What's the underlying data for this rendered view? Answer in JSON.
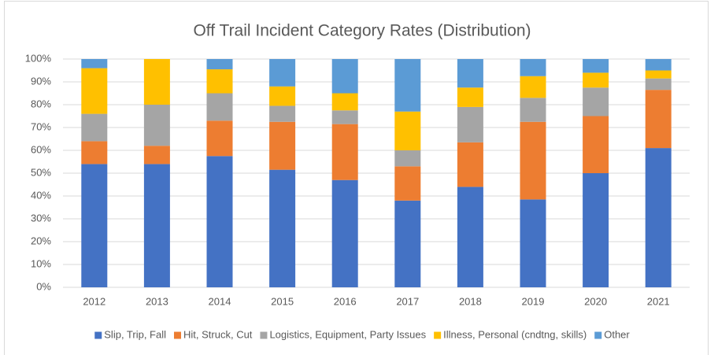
{
  "chart_data": {
    "type": "stacked_bar",
    "title": "Off Trail Incident Category Rates (Distribution)",
    "categories": [
      "2012",
      "2013",
      "2014",
      "2015",
      "2016",
      "2017",
      "2018",
      "2019",
      "2020",
      "2021"
    ],
    "series": [
      {
        "name": "Slip, Trip, Fall",
        "color": "#4472c4",
        "values": [
          54,
          54,
          57.5,
          51.5,
          47,
          38,
          44,
          38.5,
          50,
          61
        ]
      },
      {
        "name": "Hit, Struck, Cut",
        "color": "#ed7d31",
        "values": [
          10,
          8,
          15.5,
          21,
          24.5,
          15,
          19.5,
          34,
          25,
          25.5
        ]
      },
      {
        "name": "Logistics, Equipment, Party Issues",
        "color": "#a5a5a5",
        "values": [
          12,
          18,
          12,
          7,
          6,
          7,
          15.5,
          10.5,
          12.5,
          5
        ]
      },
      {
        "name": "Illness, Personal (cndtng, skills)",
        "color": "#ffc000",
        "values": [
          20,
          20,
          10.5,
          8.5,
          7.5,
          17,
          8.5,
          9.5,
          6.5,
          3.5
        ]
      },
      {
        "name": "Other",
        "color": "#5b9bd5",
        "values": [
          4,
          0,
          4.5,
          12,
          15,
          23,
          12.5,
          7.5,
          6,
          5
        ]
      }
    ],
    "ylim": [
      0,
      100
    ],
    "yticks": [
      {
        "value": 0,
        "label": "0%"
      },
      {
        "value": 10,
        "label": "10%"
      },
      {
        "value": 20,
        "label": "20%"
      },
      {
        "value": 30,
        "label": "30%"
      },
      {
        "value": 40,
        "label": "40%"
      },
      {
        "value": 50,
        "label": "50%"
      },
      {
        "value": 60,
        "label": "60%"
      },
      {
        "value": 70,
        "label": "70%"
      },
      {
        "value": 80,
        "label": "80%"
      },
      {
        "value": 90,
        "label": "90%"
      },
      {
        "value": 100,
        "label": "100%"
      }
    ],
    "grid": true,
    "legend": "bottom"
  }
}
